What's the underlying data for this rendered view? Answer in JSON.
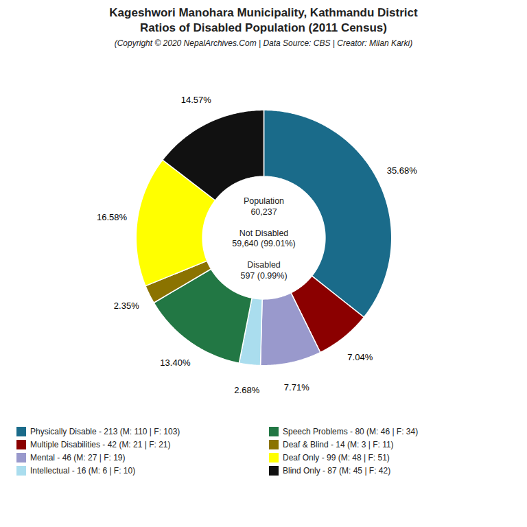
{
  "chart_data": {
    "type": "pie",
    "title": "Kageshwori Manohara Municipality, Kathmandu District\nRatios of Disabled Population (2011 Census)",
    "subtitle": "(Copyright © 2020 NepalArchives.Com | Data Source: CBS | Creator: Milan Karki)",
    "categories": [
      "Physically Disable - 213 (M: 110 | F: 103)",
      "Multiple Disabilities - 42 (M: 21 | F: 21)",
      "Mental - 46 (M: 27 | F: 19)",
      "Intellectual - 16 (M: 6 | F: 10)",
      "Speech Problems - 80 (M: 46 | F: 34)",
      "Deaf & Blind - 14 (M: 3 | F: 11)",
      "Deaf Only - 99 (M: 48 | F: 51)",
      "Blind Only - 87 (M: 45 | F: 42)"
    ],
    "values": [
      35.68,
      7.04,
      7.71,
      2.68,
      13.4,
      2.35,
      16.58,
      14.57
    ],
    "value_labels": [
      "35.68%",
      "7.04%",
      "7.71%",
      "2.68%",
      "13.40%",
      "2.35%",
      "16.58%",
      "14.57%"
    ],
    "colors": [
      "#1a6b8a",
      "#8b0000",
      "#9999cc",
      "#aaddee",
      "#227744",
      "#8b7300",
      "#ffff00",
      "#111111"
    ],
    "data_labels": true,
    "legend": "bottom",
    "annotations": [
      "Population\n60,237",
      "Not Disabled\n59,640 (99.01%)",
      "Disabled\n597 (0.99%)"
    ]
  }
}
